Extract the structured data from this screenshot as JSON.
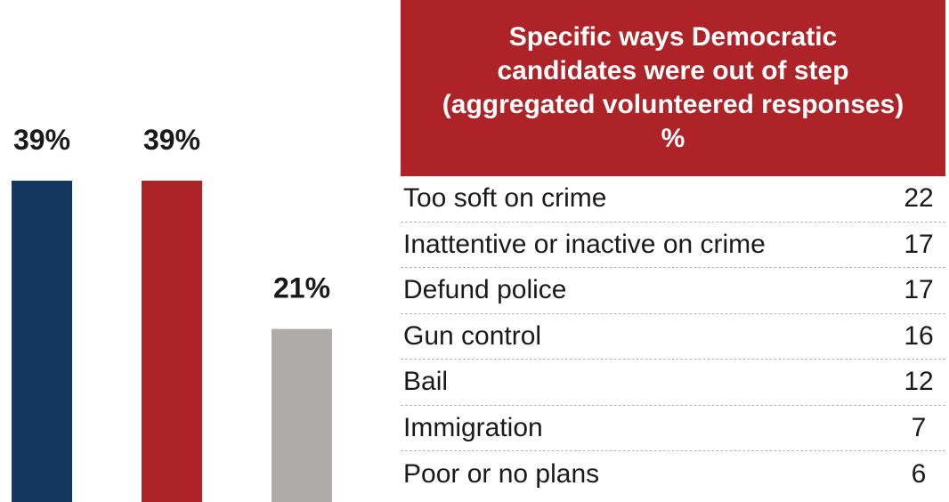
{
  "chart_data": [
    {
      "type": "bar",
      "categories": [
        "",
        "",
        ""
      ],
      "values": [
        39,
        39,
        21
      ],
      "value_labels": [
        "39%",
        "39%",
        "21%"
      ],
      "colors": [
        "#13375f",
        "#ad2328",
        "#aeabaa"
      ],
      "title": "",
      "xlabel": "",
      "ylabel": "",
      "ylim": [
        0,
        39
      ],
      "grid": false
    },
    {
      "type": "table",
      "header": "Specific ways Democratic candidates were out of step (aggregated volunteered responses) %",
      "header_color": "#ad2328",
      "rows": [
        {
          "label": "Too soft on crime",
          "value": "22"
        },
        {
          "label": "Inattentive or inactive on crime",
          "value": "17"
        },
        {
          "label": "Defund police",
          "value": "17"
        },
        {
          "label": "Gun control",
          "value": "16"
        },
        {
          "label": "Bail",
          "value": "12"
        },
        {
          "label": "Immigration",
          "value": "7"
        },
        {
          "label": "Poor or no plans",
          "value": "6"
        }
      ]
    }
  ]
}
